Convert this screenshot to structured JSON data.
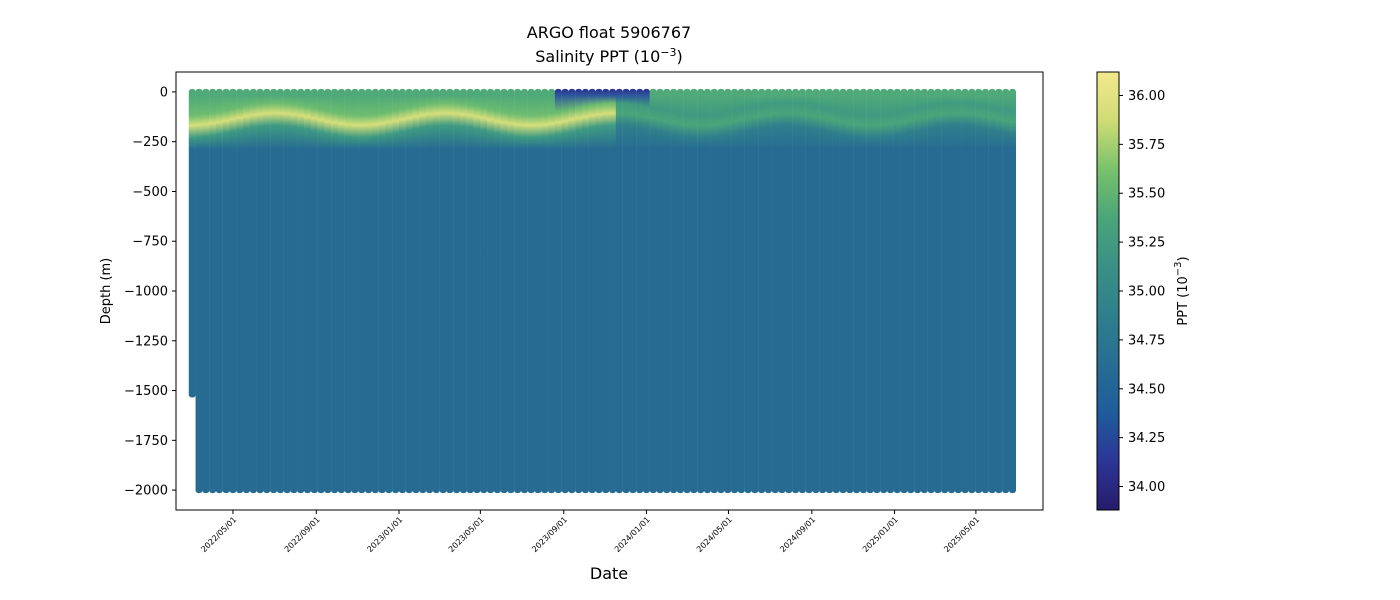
{
  "chart_data": {
    "type": "scatter",
    "title": "ARGO float 5906767",
    "subtitle": "Salinity PPT",
    "subtitle_unit_base": "10",
    "subtitle_unit_exp": "−3",
    "xlabel": "Date",
    "ylabel": "Depth (m)",
    "x_tick_labels": [
      "2022/05/01",
      "2022/09/01",
      "2023/01/01",
      "2023/05/01",
      "2023/09/01",
      "2024/01/01",
      "2024/05/01",
      "2024/09/01",
      "2025/01/01",
      "2025/05/01"
    ],
    "x_tick_positions_days": [
      0,
      123,
      245,
      365,
      488,
      610,
      731,
      854,
      976,
      1096
    ],
    "x_range_days": [
      -84,
      1195
    ],
    "profile_start_day": -60,
    "profile_end_day": 1152,
    "profile_interval_days": 10,
    "first_profile_max_depth": -1520,
    "typical_profile_max_depth": -2000,
    "y_ticks": [
      0,
      -250,
      -500,
      -750,
      -1000,
      -1250,
      -1500,
      -1750,
      -2000
    ],
    "y_range": [
      -2100,
      100
    ],
    "low_salinity_surface_window_days": [
      478,
      612
    ],
    "colorbar": {
      "label": "PPT",
      "label_unit_base": "10",
      "label_unit_exp": "−3",
      "range": [
        33.88,
        36.12
      ],
      "ticks": [
        "34.00",
        "34.25",
        "34.50",
        "34.75",
        "35.00",
        "35.25",
        "35.50",
        "35.75",
        "36.00"
      ],
      "colormap": [
        "#281c6b",
        "#2c3596",
        "#1f5c9c",
        "#276d93",
        "#2f7f8c",
        "#3a9085",
        "#4aa57a",
        "#79c26c",
        "#d0dc74",
        "#f2e98e"
      ]
    },
    "colors": {
      "deep_water": "#266b92",
      "surface_water": "#4fa979",
      "subsurface_max": "#d6df7a",
      "fresh_surface": "#2a2f92"
    }
  }
}
